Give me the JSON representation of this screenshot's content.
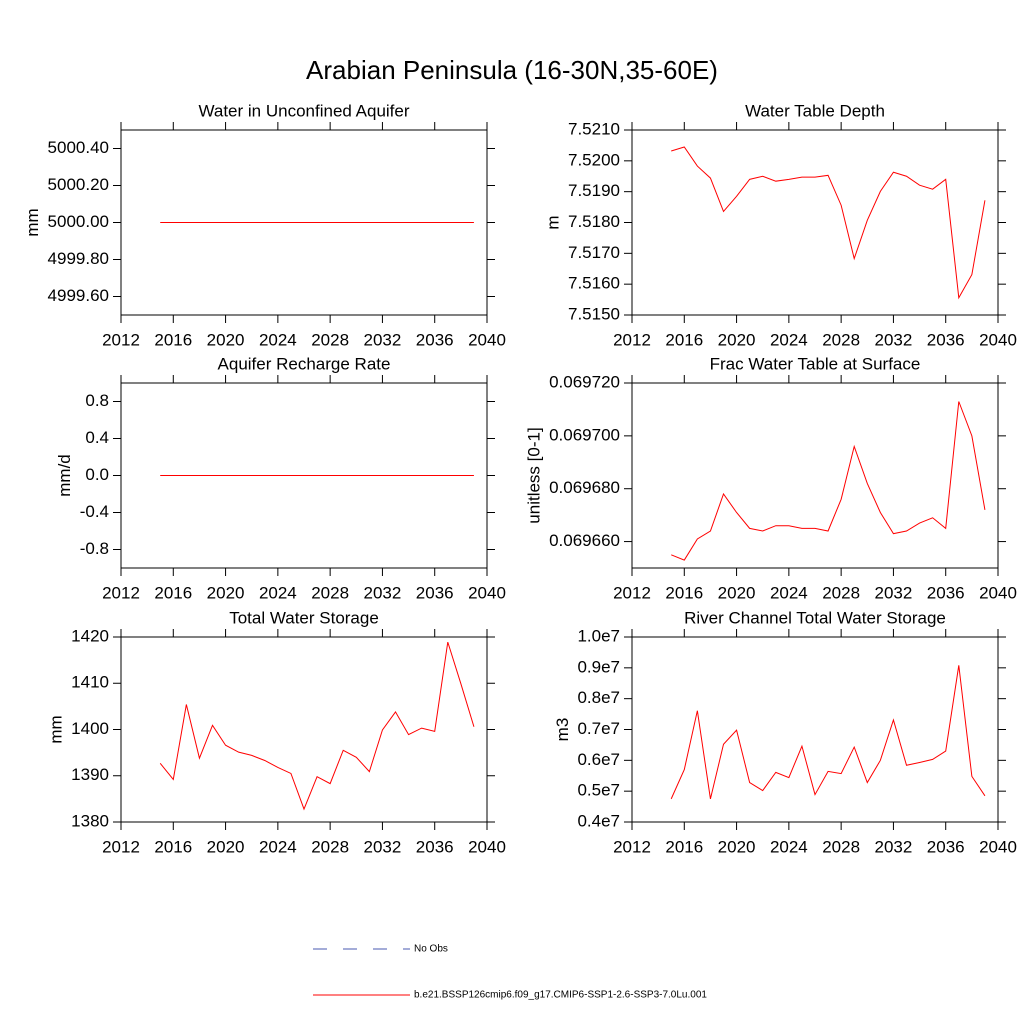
{
  "title": "Arabian Peninsula (16-30N,35-60E)",
  "legend": {
    "entries": [
      {
        "name": "No Obs",
        "color": "#4a5ab0",
        "style": "dashed"
      },
      {
        "name": "b.e21.BSSP126cmip6.f09_g17.CMIP6-SSP1-2.6-SSP3-7.0Lu.001",
        "color": "#ff0000",
        "style": "solid"
      }
    ]
  },
  "chart_data": [
    {
      "type": "line",
      "title": "Water in Unconfined Aquifer",
      "ylabel": "mm",
      "x": [
        2015,
        2016,
        2017,
        2018,
        2019,
        2020,
        2021,
        2022,
        2023,
        2024,
        2025,
        2026,
        2027,
        2028,
        2029,
        2030,
        2031,
        2032,
        2033,
        2034,
        2035,
        2036,
        2037,
        2038,
        2039
      ],
      "xlim": [
        2012,
        2040
      ],
      "xticks": [
        2012,
        2016,
        2020,
        2024,
        2028,
        2032,
        2036,
        2040
      ],
      "ylim": [
        4999.5,
        5000.5
      ],
      "yticks": [
        {
          "value": 4999.6,
          "label": "4999.60"
        },
        {
          "value": 4999.8,
          "label": "4999.80"
        },
        {
          "value": 5000,
          "label": "5000.00"
        },
        {
          "value": 5000.2,
          "label": "5000.20"
        },
        {
          "value": 5000.4,
          "label": "5000.40"
        }
      ],
      "series": [
        {
          "color": "#ff0000",
          "values": [
            5000,
            5000,
            5000,
            5000,
            5000,
            5000,
            5000,
            5000,
            5000,
            5000,
            5000,
            5000,
            5000,
            5000,
            5000,
            5000,
            5000,
            5000,
            5000,
            5000,
            5000,
            5000,
            5000,
            5000,
            5000
          ]
        }
      ]
    },
    {
      "type": "line",
      "title": "Water Table Depth",
      "ylabel": "m",
      "x": [
        2015,
        2016,
        2017,
        2018,
        2019,
        2020,
        2021,
        2022,
        2023,
        2024,
        2025,
        2026,
        2027,
        2028,
        2029,
        2030,
        2031,
        2032,
        2033,
        2034,
        2035,
        2036,
        2037,
        2038,
        2039
      ],
      "xlim": [
        2012,
        2040
      ],
      "xticks": [
        2012,
        2016,
        2020,
        2024,
        2028,
        2032,
        2036,
        2040
      ],
      "ylim": [
        7.515,
        7.521
      ],
      "yticks": [
        {
          "value": 7.515,
          "label": "7.5150"
        },
        {
          "value": 7.516,
          "label": "7.5160"
        },
        {
          "value": 7.517,
          "label": "7.5170"
        },
        {
          "value": 7.518,
          "label": "7.5180"
        },
        {
          "value": 7.519,
          "label": "7.5190"
        },
        {
          "value": 7.52,
          "label": "7.5200"
        },
        {
          "value": 7.521,
          "label": "7.5210"
        }
      ],
      "series": [
        {
          "color": "#ff0000",
          "values": [
            7.52032,
            7.52045,
            7.51983,
            7.51944,
            7.51836,
            7.51885,
            7.5194,
            7.5195,
            7.51934,
            7.5194,
            7.51947,
            7.51947,
            7.51953,
            7.51856,
            7.51683,
            7.51807,
            7.51901,
            7.51963,
            7.5195,
            7.51921,
            7.51908,
            7.5194,
            7.51556,
            7.51631,
            7.51872
          ]
        }
      ]
    },
    {
      "type": "line",
      "title": "Aquifer Recharge Rate",
      "ylabel": "mm/d",
      "x": [
        2015,
        2016,
        2017,
        2018,
        2019,
        2020,
        2021,
        2022,
        2023,
        2024,
        2025,
        2026,
        2027,
        2028,
        2029,
        2030,
        2031,
        2032,
        2033,
        2034,
        2035,
        2036,
        2037,
        2038,
        2039
      ],
      "xlim": [
        2012,
        2040
      ],
      "xticks": [
        2012,
        2016,
        2020,
        2024,
        2028,
        2032,
        2036,
        2040
      ],
      "ylim": [
        -1,
        1
      ],
      "yticks": [
        -0.8,
        -0.4,
        {
          "value": 0,
          "label": "0.0"
        },
        0.4,
        0.8
      ],
      "series": [
        {
          "color": "#ff0000",
          "values": [
            0,
            0,
            0,
            0,
            0,
            0,
            0,
            0,
            0,
            0,
            0,
            0,
            0,
            0,
            0,
            0,
            0,
            0,
            0,
            0,
            0,
            0,
            0,
            0,
            0
          ]
        }
      ]
    },
    {
      "type": "line",
      "title": "Frac Water Table at Surface",
      "ylabel": "unitless [0-1]",
      "x": [
        2015,
        2016,
        2017,
        2018,
        2019,
        2020,
        2021,
        2022,
        2023,
        2024,
        2025,
        2026,
        2027,
        2028,
        2029,
        2030,
        2031,
        2032,
        2033,
        2034,
        2035,
        2036,
        2037,
        2038,
        2039
      ],
      "xlim": [
        2012,
        2040
      ],
      "xticks": [
        2012,
        2016,
        2020,
        2024,
        2028,
        2032,
        2036,
        2040
      ],
      "ylim": [
        0.06965,
        0.06972
      ],
      "yticks": [
        {
          "value": 0.06966,
          "label": "0.069660"
        },
        {
          "value": 0.06968,
          "label": "0.069680"
        },
        {
          "value": 0.0697,
          "label": "0.069700"
        },
        {
          "value": 0.06972,
          "label": "0.069720"
        }
      ],
      "series": [
        {
          "color": "#ff0000",
          "values": [
            0.069655,
            0.069653,
            0.069661,
            0.069664,
            0.069678,
            0.069671,
            0.069665,
            0.069664,
            0.069666,
            0.069666,
            0.069665,
            0.069665,
            0.069664,
            0.069676,
            0.069696,
            0.069682,
            0.069671,
            0.069663,
            0.069664,
            0.069667,
            0.069669,
            0.069665,
            0.069713,
            0.0697,
            0.069672
          ]
        }
      ]
    },
    {
      "type": "line",
      "title": "Total Water Storage",
      "ylabel": "mm",
      "x": [
        2015,
        2016,
        2017,
        2018,
        2019,
        2020,
        2021,
        2022,
        2023,
        2024,
        2025,
        2026,
        2027,
        2028,
        2029,
        2030,
        2031,
        2032,
        2033,
        2034,
        2035,
        2036,
        2037,
        2038,
        2039
      ],
      "xlim": [
        2012,
        2040
      ],
      "xticks": [
        2012,
        2016,
        2020,
        2024,
        2028,
        2032,
        2036,
        2040
      ],
      "ylim": [
        1380,
        1420
      ],
      "yticks": [
        1380,
        1390,
        1400,
        1410,
        1420
      ],
      "series": [
        {
          "color": "#ff0000",
          "values": [
            1392.7,
            1389.2,
            1405.4,
            1393.8,
            1400.9,
            1396.6,
            1395.1,
            1394.4,
            1393.3,
            1391.8,
            1390.5,
            1382.8,
            1389.8,
            1388.3,
            1395.5,
            1394.0,
            1390.9,
            1399.9,
            1403.8,
            1398.9,
            1400.3,
            1399.6,
            1418.9,
            1409.9,
            1400.6
          ]
        }
      ]
    },
    {
      "type": "line",
      "title": "River Channel Total Water Storage",
      "ylabel": "m3",
      "x": [
        2015,
        2016,
        2017,
        2018,
        2019,
        2020,
        2021,
        2022,
        2023,
        2024,
        2025,
        2026,
        2027,
        2028,
        2029,
        2030,
        2031,
        2032,
        2033,
        2034,
        2035,
        2036,
        2037,
        2038,
        2039
      ],
      "xlim": [
        2012,
        2040
      ],
      "xticks": [
        2012,
        2016,
        2020,
        2024,
        2028,
        2032,
        2036,
        2040
      ],
      "ylim": [
        4000000,
        10000000
      ],
      "yticks": [
        {
          "value": 4000000,
          "label": "0.4e7"
        },
        {
          "value": 5000000,
          "label": "0.5e7"
        },
        {
          "value": 6000000,
          "label": "0.6e7"
        },
        {
          "value": 7000000,
          "label": "0.7e7"
        },
        {
          "value": 8000000,
          "label": "0.8e7"
        },
        {
          "value": 9000000,
          "label": "0.9e7"
        },
        {
          "value": 10000000,
          "label": "1.0e7"
        }
      ],
      "series": [
        {
          "color": "#ff0000",
          "values": [
            4750000,
            5700000,
            7610000,
            4750000,
            6520000,
            6980000,
            5280000,
            5020000,
            5610000,
            5440000,
            6460000,
            4890000,
            5640000,
            5570000,
            6430000,
            5280000,
            6000000,
            7310000,
            5840000,
            5930000,
            6030000,
            6300000,
            9080000,
            5480000,
            4850000
          ]
        }
      ]
    }
  ]
}
